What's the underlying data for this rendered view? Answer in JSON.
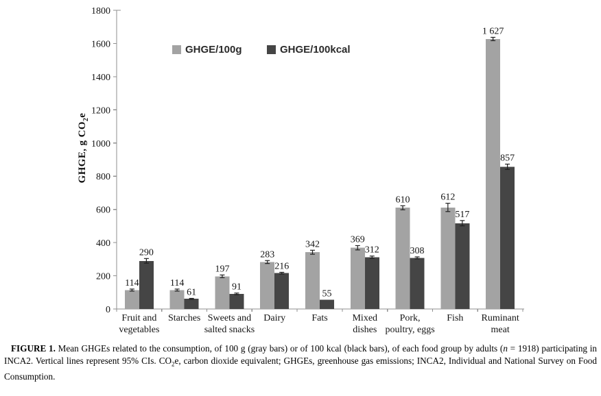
{
  "figure": {
    "caption": {
      "label": "FIGURE 1.",
      "part1": " Mean GHGEs related to the consumption, of 100 g (gray bars) or of 100 kcal (black bars), of each food group by adults (",
      "n_var": "n",
      "part2": " = 1918) participating in INCA2. Vertical lines represent 95% CIs. CO",
      "co2_sub": "2",
      "part3": "e, carbon dioxide equivalent; GHGEs, greenhouse gas emissions; INCA2, Individual and National Survey on Food Consumption."
    }
  },
  "chart_data": {
    "type": "bar",
    "title": "",
    "ylabel": "GHGE, g CO2e",
    "ylabel_parts": {
      "pre": "GHGE, g CO",
      "sub": "2",
      "post": "e"
    },
    "xlabel": "",
    "ylim": [
      0,
      1800
    ],
    "yticks": [
      0,
      200,
      400,
      600,
      800,
      1000,
      1200,
      1400,
      1600,
      1800
    ],
    "grid": false,
    "legend_position": "top-center",
    "axis_color": "#8f8f8f",
    "error_bar_color": "#1f1f1f",
    "error_bars_note": "95% CIs",
    "categories": [
      "Fruit and vegetables",
      "Starches",
      "Sweets and salted snacks",
      "Dairy",
      "Fats",
      "Mixed dishes",
      "Pork, poultry, eggs",
      "Fish",
      "Ruminant meat"
    ],
    "categories_lines": [
      [
        "Fruit and",
        "vegetables"
      ],
      [
        "Starches"
      ],
      [
        "Sweets and",
        "salted snacks"
      ],
      [
        "Dairy"
      ],
      [
        "Fats"
      ],
      [
        "Mixed",
        "dishes"
      ],
      [
        "Pork,",
        "poultry, eggs"
      ],
      [
        "Fish"
      ],
      [
        "Ruminant",
        "meat"
      ]
    ],
    "series": [
      {
        "name": "GHGE/100g",
        "color": "#a3a3a3",
        "values": [
          114,
          114,
          197,
          283,
          342,
          369,
          610,
          612,
          1627
        ],
        "value_labels": [
          "114",
          "114",
          "197",
          "283",
          "342",
          "369",
          "610",
          "612",
          "1 627"
        ],
        "ci95": [
          6,
          6,
          8,
          9,
          12,
          13,
          12,
          25,
          10
        ]
      },
      {
        "name": "GHGE/100kcal",
        "color": "#454545",
        "values": [
          290,
          61,
          91,
          216,
          55,
          312,
          308,
          517,
          857
        ],
        "value_labels": [
          "290",
          "61",
          "91",
          "216",
          "55",
          "312",
          "308",
          "517",
          "857"
        ],
        "ci95": [
          14,
          3,
          5,
          5,
          0,
          7,
          6,
          16,
          16
        ]
      }
    ]
  }
}
